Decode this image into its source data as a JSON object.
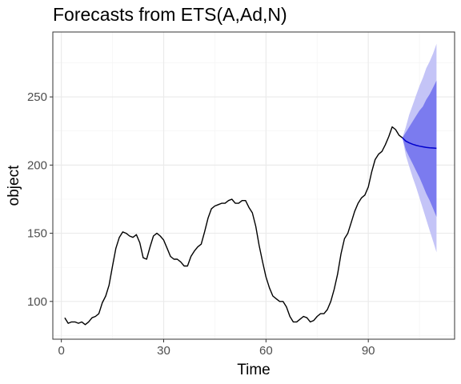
{
  "chart_data": {
    "type": "line",
    "title": "Forecasts from ETS(A,Ad,N)",
    "xlabel": "Time",
    "ylabel": "object",
    "xlim": [
      -2.5,
      115.3
    ],
    "ylim": [
      72.3,
      297.6
    ],
    "x_ticks": [
      0,
      30,
      60,
      90
    ],
    "y_ticks": [
      100,
      150,
      200,
      250
    ],
    "grid": true,
    "colors": {
      "observed": "#000000",
      "forecast": "#0000cc",
      "pi80": "#7b7bef",
      "pi95": "#c4c4f7",
      "grid_major": "#ebebeb",
      "grid_minor": "#f4f4f4",
      "panel_border": "#333333"
    },
    "observed": {
      "x": [
        1,
        2,
        3,
        4,
        5,
        6,
        7,
        8,
        9,
        10,
        11,
        12,
        13,
        14,
        15,
        16,
        17,
        18,
        19,
        20,
        21,
        22,
        23,
        24,
        25,
        26,
        27,
        28,
        29,
        30,
        31,
        32,
        33,
        34,
        35,
        36,
        37,
        38,
        39,
        40,
        41,
        42,
        43,
        44,
        45,
        46,
        47,
        48,
        49,
        50,
        51,
        52,
        53,
        54,
        55,
        56,
        57,
        58,
        59,
        60,
        61,
        62,
        63,
        64,
        65,
        66,
        67,
        68,
        69,
        70,
        71,
        72,
        73,
        74,
        75,
        76,
        77,
        78,
        79,
        80,
        81,
        82,
        83,
        84,
        85,
        86,
        87,
        88,
        89,
        90,
        91,
        92,
        93,
        94,
        95,
        96,
        97,
        98,
        99,
        100
      ],
      "y": [
        88,
        84,
        85,
        85,
        84,
        85,
        83,
        85,
        88,
        89,
        91,
        99,
        104,
        112,
        126,
        139,
        147,
        151,
        150,
        148,
        147,
        149,
        143,
        132,
        131,
        140,
        148,
        150,
        148,
        145,
        139,
        133,
        131,
        131,
        129,
        126,
        126,
        133,
        137,
        140,
        142,
        151,
        161,
        168,
        170,
        171,
        172,
        172,
        174,
        175,
        172,
        172,
        174,
        174,
        169,
        165,
        155,
        141,
        129,
        118,
        110,
        104,
        102,
        100,
        100,
        96,
        89,
        85,
        85,
        87,
        89,
        88,
        85,
        86,
        89,
        91,
        91,
        94,
        100,
        109,
        120,
        135,
        146,
        150,
        158,
        166,
        172,
        176,
        178,
        184,
        195,
        204,
        208,
        210,
        215,
        221,
        228,
        226,
        222,
        220
      ]
    },
    "forecast": {
      "x": [
        100,
        101,
        102,
        103,
        104,
        105,
        106,
        107,
        108,
        109,
        110
      ],
      "mean": [
        220,
        217.6,
        216.3,
        215.3,
        214.5,
        213.9,
        213.4,
        213,
        212.7,
        212.5,
        212.3
      ],
      "lo80": [
        220,
        211,
        206,
        201,
        196,
        191,
        185,
        179,
        174,
        168,
        162
      ],
      "hi80": [
        220,
        224,
        228,
        232,
        236,
        240,
        243,
        248,
        252,
        257,
        262
      ],
      "lo95": [
        220,
        207,
        199,
        191,
        184,
        176,
        168,
        160,
        152,
        144,
        136
      ],
      "hi95": [
        220,
        228,
        237,
        244,
        251,
        258,
        264,
        271,
        276,
        282,
        289
      ]
    }
  }
}
